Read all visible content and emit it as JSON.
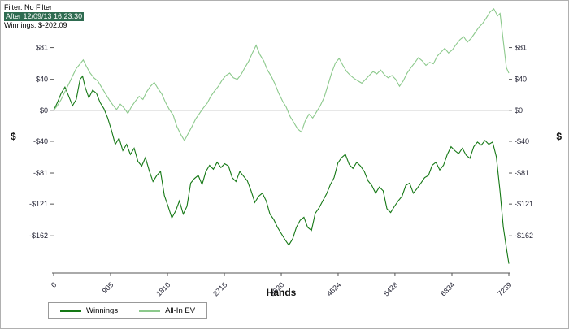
{
  "header": {
    "filter_line": "Filter: No Filter",
    "after_line": "After 12/09/13 16:23:30",
    "winnings_line": "Winnings: $-202.09",
    "highlight_bg": "#2e6b50"
  },
  "colors": {
    "frame_border": "#b0b0b0",
    "zero_line": "#a0a0a0",
    "axis": "#555555",
    "winnings_line": "#157815",
    "allin_ev_line": "#8cc98c"
  },
  "chart_data": {
    "type": "line",
    "title": "",
    "xlabel": "Hands",
    "ylabel": "$",
    "ylabel_right": "$",
    "xlim": [
      0,
      7239
    ],
    "ylim": [
      -210,
      133
    ],
    "grid": false,
    "zero_line": true,
    "legend_position": "bottom-left",
    "x_ticks": [
      0,
      905,
      1810,
      2715,
      3620,
      4524,
      5428,
      6334,
      7239
    ],
    "y_ticks": [
      {
        "value": 81,
        "label": "$81"
      },
      {
        "value": 40,
        "label": "$40"
      },
      {
        "value": 0,
        "label": "$0"
      },
      {
        "value": -40,
        "label": "-$40"
      },
      {
        "value": -81,
        "label": "-$81"
      },
      {
        "value": -121,
        "label": "-$121"
      },
      {
        "value": -162,
        "label": "-$162"
      }
    ],
    "legend": [
      "Winnings",
      "All-In EV"
    ],
    "series": [
      {
        "name": "Winnings",
        "color": "#157815",
        "points": [
          [
            0,
            0
          ],
          [
            60,
            10
          ],
          [
            120,
            22
          ],
          [
            180,
            30
          ],
          [
            240,
            18
          ],
          [
            300,
            6
          ],
          [
            360,
            14
          ],
          [
            420,
            40
          ],
          [
            460,
            44
          ],
          [
            500,
            30
          ],
          [
            560,
            16
          ],
          [
            620,
            26
          ],
          [
            680,
            22
          ],
          [
            740,
            10
          ],
          [
            800,
            2
          ],
          [
            860,
            -10
          ],
          [
            920,
            -26
          ],
          [
            980,
            -44
          ],
          [
            1040,
            -36
          ],
          [
            1100,
            -52
          ],
          [
            1160,
            -44
          ],
          [
            1220,
            -57
          ],
          [
            1280,
            -49
          ],
          [
            1340,
            -66
          ],
          [
            1400,
            -72
          ],
          [
            1460,
            -61
          ],
          [
            1520,
            -78
          ],
          [
            1580,
            -92
          ],
          [
            1640,
            -84
          ],
          [
            1700,
            -79
          ],
          [
            1760,
            -110
          ],
          [
            1820,
            -124
          ],
          [
            1880,
            -139
          ],
          [
            1940,
            -130
          ],
          [
            2000,
            -117
          ],
          [
            2060,
            -134
          ],
          [
            2120,
            -124
          ],
          [
            2180,
            -94
          ],
          [
            2240,
            -88
          ],
          [
            2300,
            -84
          ],
          [
            2360,
            -96
          ],
          [
            2420,
            -79
          ],
          [
            2480,
            -71
          ],
          [
            2540,
            -76
          ],
          [
            2600,
            -67
          ],
          [
            2660,
            -74
          ],
          [
            2720,
            -69
          ],
          [
            2780,
            -72
          ],
          [
            2840,
            -87
          ],
          [
            2900,
            -92
          ],
          [
            2960,
            -79
          ],
          [
            3020,
            -85
          ],
          [
            3080,
            -91
          ],
          [
            3140,
            -104
          ],
          [
            3200,
            -119
          ],
          [
            3260,
            -111
          ],
          [
            3320,
            -107
          ],
          [
            3380,
            -117
          ],
          [
            3440,
            -134
          ],
          [
            3500,
            -141
          ],
          [
            3560,
            -151
          ],
          [
            3620,
            -159
          ],
          [
            3680,
            -167
          ],
          [
            3740,
            -174
          ],
          [
            3800,
            -166
          ],
          [
            3860,
            -151
          ],
          [
            3920,
            -142
          ],
          [
            3980,
            -138
          ],
          [
            4040,
            -151
          ],
          [
            4100,
            -155
          ],
          [
            4160,
            -133
          ],
          [
            4220,
            -126
          ],
          [
            4280,
            -117
          ],
          [
            4340,
            -108
          ],
          [
            4400,
            -96
          ],
          [
            4460,
            -87
          ],
          [
            4520,
            -68
          ],
          [
            4580,
            -61
          ],
          [
            4640,
            -57
          ],
          [
            4700,
            -70
          ],
          [
            4760,
            -75
          ],
          [
            4820,
            -67
          ],
          [
            4880,
            -72
          ],
          [
            4940,
            -79
          ],
          [
            5000,
            -91
          ],
          [
            5060,
            -97
          ],
          [
            5120,
            -107
          ],
          [
            5180,
            -99
          ],
          [
            5240,
            -104
          ],
          [
            5300,
            -127
          ],
          [
            5360,
            -132
          ],
          [
            5420,
            -124
          ],
          [
            5480,
            -117
          ],
          [
            5540,
            -111
          ],
          [
            5600,
            -97
          ],
          [
            5660,
            -94
          ],
          [
            5720,
            -107
          ],
          [
            5780,
            -101
          ],
          [
            5840,
            -94
          ],
          [
            5900,
            -87
          ],
          [
            5960,
            -84
          ],
          [
            6020,
            -71
          ],
          [
            6080,
            -67
          ],
          [
            6140,
            -77
          ],
          [
            6200,
            -71
          ],
          [
            6260,
            -57
          ],
          [
            6320,
            -47
          ],
          [
            6380,
            -52
          ],
          [
            6440,
            -56
          ],
          [
            6500,
            -49
          ],
          [
            6560,
            -58
          ],
          [
            6620,
            -62
          ],
          [
            6680,
            -47
          ],
          [
            6740,
            -41
          ],
          [
            6800,
            -45
          ],
          [
            6860,
            -39
          ],
          [
            6920,
            -44
          ],
          [
            6980,
            -41
          ],
          [
            7040,
            -60
          ],
          [
            7100,
            -105
          ],
          [
            7150,
            -150
          ],
          [
            7200,
            -178
          ],
          [
            7239,
            -198
          ]
        ]
      },
      {
        "name": "All-In EV",
        "color": "#8cc98c",
        "points": [
          [
            0,
            0
          ],
          [
            60,
            6
          ],
          [
            120,
            14
          ],
          [
            180,
            24
          ],
          [
            240,
            34
          ],
          [
            300,
            44
          ],
          [
            360,
            54
          ],
          [
            420,
            60
          ],
          [
            470,
            65
          ],
          [
            520,
            57
          ],
          [
            580,
            48
          ],
          [
            640,
            42
          ],
          [
            700,
            38
          ],
          [
            760,
            30
          ],
          [
            820,
            22
          ],
          [
            880,
            14
          ],
          [
            940,
            7
          ],
          [
            1000,
            1
          ],
          [
            1060,
            8
          ],
          [
            1120,
            3
          ],
          [
            1180,
            -4
          ],
          [
            1240,
            5
          ],
          [
            1300,
            12
          ],
          [
            1360,
            18
          ],
          [
            1420,
            14
          ],
          [
            1480,
            24
          ],
          [
            1540,
            31
          ],
          [
            1600,
            36
          ],
          [
            1660,
            28
          ],
          [
            1720,
            21
          ],
          [
            1780,
            10
          ],
          [
            1840,
            1
          ],
          [
            1900,
            -6
          ],
          [
            1960,
            -21
          ],
          [
            2020,
            -31
          ],
          [
            2080,
            -39
          ],
          [
            2140,
            -30
          ],
          [
            2200,
            -21
          ],
          [
            2260,
            -11
          ],
          [
            2320,
            -4
          ],
          [
            2380,
            3
          ],
          [
            2440,
            9
          ],
          [
            2500,
            18
          ],
          [
            2560,
            25
          ],
          [
            2620,
            31
          ],
          [
            2680,
            39
          ],
          [
            2740,
            45
          ],
          [
            2800,
            48
          ],
          [
            2860,
            42
          ],
          [
            2920,
            40
          ],
          [
            2980,
            46
          ],
          [
            3040,
            55
          ],
          [
            3100,
            63
          ],
          [
            3160,
            74
          ],
          [
            3220,
            84
          ],
          [
            3280,
            72
          ],
          [
            3340,
            64
          ],
          [
            3400,
            52
          ],
          [
            3460,
            44
          ],
          [
            3520,
            34
          ],
          [
            3580,
            22
          ],
          [
            3640,
            12
          ],
          [
            3700,
            4
          ],
          [
            3760,
            -8
          ],
          [
            3820,
            -16
          ],
          [
            3880,
            -24
          ],
          [
            3940,
            -28
          ],
          [
            4000,
            -14
          ],
          [
            4060,
            -5
          ],
          [
            4120,
            -10
          ],
          [
            4180,
            -2
          ],
          [
            4240,
            6
          ],
          [
            4300,
            16
          ],
          [
            4360,
            32
          ],
          [
            4420,
            48
          ],
          [
            4480,
            61
          ],
          [
            4540,
            67
          ],
          [
            4600,
            58
          ],
          [
            4660,
            50
          ],
          [
            4720,
            45
          ],
          [
            4780,
            41
          ],
          [
            4840,
            38
          ],
          [
            4900,
            35
          ],
          [
            4960,
            40
          ],
          [
            5020,
            45
          ],
          [
            5080,
            50
          ],
          [
            5140,
            47
          ],
          [
            5200,
            52
          ],
          [
            5260,
            46
          ],
          [
            5320,
            42
          ],
          [
            5380,
            45
          ],
          [
            5440,
            40
          ],
          [
            5500,
            31
          ],
          [
            5560,
            38
          ],
          [
            5620,
            48
          ],
          [
            5680,
            55
          ],
          [
            5740,
            61
          ],
          [
            5800,
            68
          ],
          [
            5860,
            64
          ],
          [
            5920,
            58
          ],
          [
            5980,
            62
          ],
          [
            6040,
            60
          ],
          [
            6100,
            70
          ],
          [
            6160,
            75
          ],
          [
            6220,
            80
          ],
          [
            6280,
            74
          ],
          [
            6340,
            78
          ],
          [
            6400,
            85
          ],
          [
            6460,
            91
          ],
          [
            6520,
            95
          ],
          [
            6580,
            88
          ],
          [
            6640,
            93
          ],
          [
            6700,
            100
          ],
          [
            6760,
            107
          ],
          [
            6820,
            112
          ],
          [
            6880,
            119
          ],
          [
            6940,
            127
          ],
          [
            7000,
            131
          ],
          [
            7060,
            122
          ],
          [
            7100,
            125
          ],
          [
            7150,
            90
          ],
          [
            7200,
            55
          ],
          [
            7239,
            48
          ]
        ]
      }
    ]
  }
}
